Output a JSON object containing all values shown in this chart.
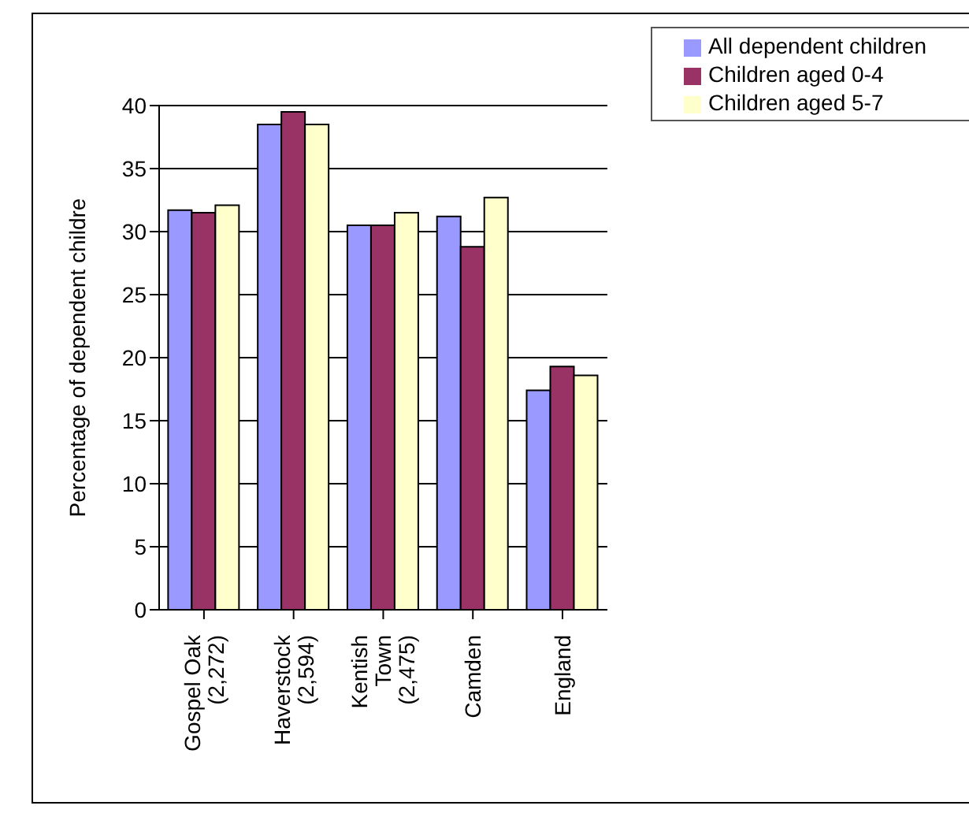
{
  "chart_data": {
    "type": "bar",
    "ylabel": "Percentage of dependent childre",
    "categories": [
      "Gospel Oak\n(2,272)",
      "Haverstock\n(2,594)",
      "Kentish\nTown\n(2,475)",
      "Camden",
      "England"
    ],
    "series": [
      {
        "name": "All dependent children",
        "color": "#9999ff",
        "values": [
          31.7,
          38.5,
          30.5,
          31.2,
          17.4
        ]
      },
      {
        "name": "Children aged 0-4",
        "color": "#993366",
        "values": [
          31.5,
          39.5,
          30.5,
          28.8,
          19.3
        ]
      },
      {
        "name": "Children aged 5-7",
        "color": "#ffffcc",
        "values": [
          32.1,
          38.5,
          31.5,
          32.7,
          18.6
        ]
      }
    ],
    "ylim": [
      0,
      40
    ],
    "yticks": [
      0,
      5,
      10,
      15,
      20,
      25,
      30,
      35,
      40
    ],
    "grid": "y",
    "legend": "top right"
  }
}
